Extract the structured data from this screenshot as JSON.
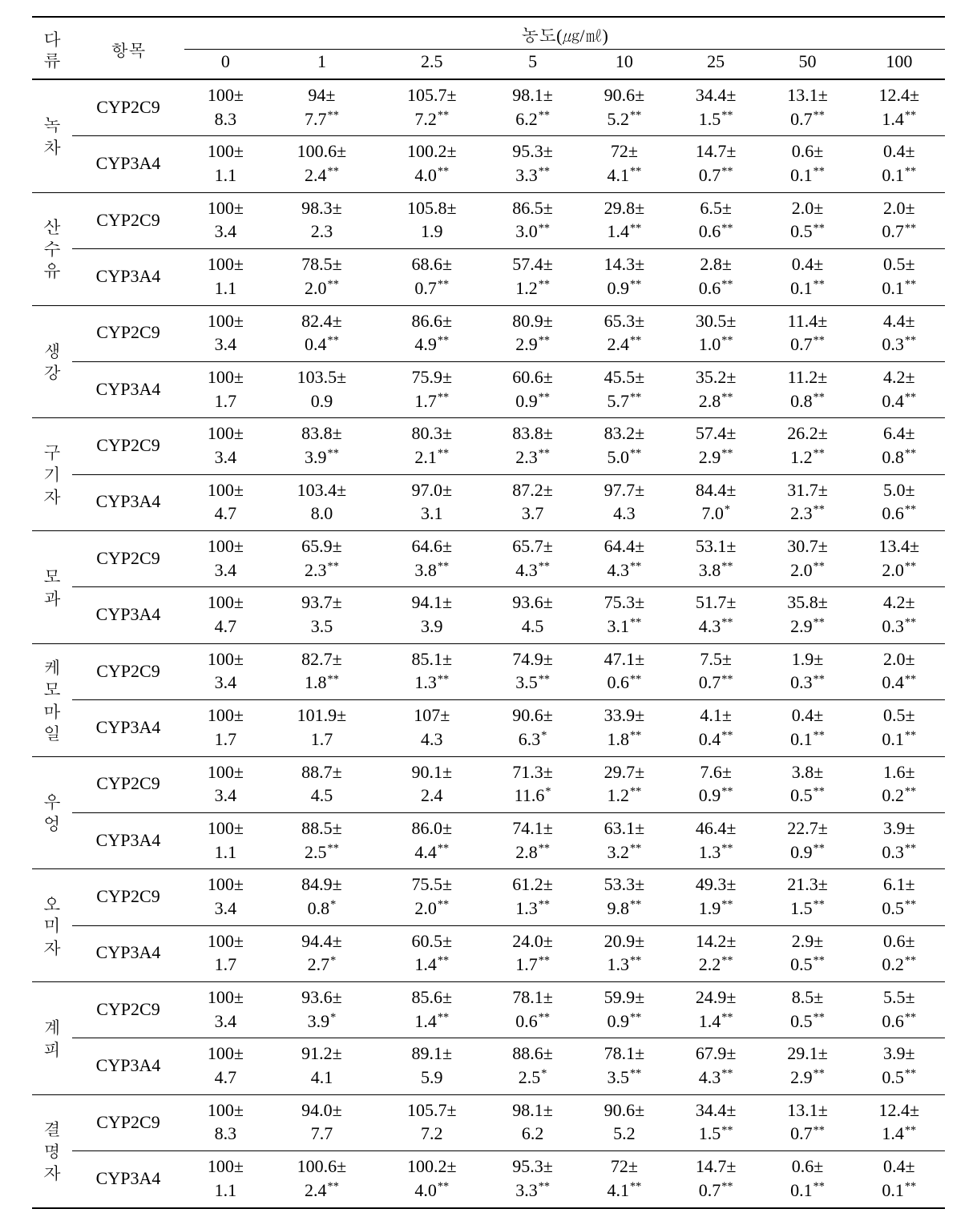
{
  "header": {
    "category_lines": [
      "다",
      "류"
    ],
    "item": "항목",
    "conc_title": "농도(㎍/㎖)",
    "levels": [
      "0",
      "1",
      "2.5",
      "5",
      "10",
      "25",
      "50",
      "100"
    ]
  },
  "groups": [
    {
      "name_lines": [
        "녹",
        "차"
      ],
      "rows": [
        {
          "item": "CYP2C9",
          "vals": [
            [
              "100±",
              "8.3",
              ""
            ],
            [
              "94±",
              "7.7",
              "**"
            ],
            [
              "105.7±",
              "7.2",
              "**"
            ],
            [
              "98.1±",
              "6.2",
              "**"
            ],
            [
              "90.6±",
              "5.2",
              "**"
            ],
            [
              "34.4±",
              "1.5",
              "**"
            ],
            [
              "13.1±",
              "0.7",
              "**"
            ],
            [
              "12.4±",
              "1.4",
              "**"
            ]
          ]
        },
        {
          "item": "CYP3A4",
          "vals": [
            [
              "100±",
              "1.1",
              ""
            ],
            [
              "100.6±",
              "2.4",
              "**"
            ],
            [
              "100.2±",
              "4.0",
              "**"
            ],
            [
              "95.3±",
              "3.3",
              "**"
            ],
            [
              "72±",
              "4.1",
              "**"
            ],
            [
              "14.7±",
              "0.7",
              "**"
            ],
            [
              "0.6±",
              "0.1",
              "**"
            ],
            [
              "0.4±",
              "0.1",
              "**"
            ]
          ]
        }
      ]
    },
    {
      "name_lines": [
        "산",
        "수",
        "유"
      ],
      "rows": [
        {
          "item": "CYP2C9",
          "vals": [
            [
              "100±",
              "3.4",
              ""
            ],
            [
              "98.3±",
              "2.3",
              ""
            ],
            [
              "105.8±",
              "1.9",
              ""
            ],
            [
              "86.5±",
              "3.0",
              "**"
            ],
            [
              "29.8±",
              "1.4",
              "**"
            ],
            [
              "6.5±",
              "0.6",
              "**"
            ],
            [
              "2.0±",
              "0.5",
              "**"
            ],
            [
              "2.0±",
              "0.7",
              "**"
            ]
          ]
        },
        {
          "item": "CYP3A4",
          "vals": [
            [
              "100±",
              "1.1",
              ""
            ],
            [
              "78.5±",
              "2.0",
              "**"
            ],
            [
              "68.6±",
              "0.7",
              "**"
            ],
            [
              "57.4±",
              "1.2",
              "**"
            ],
            [
              "14.3±",
              "0.9",
              "**"
            ],
            [
              "2.8±",
              "0.6",
              "**"
            ],
            [
              "0.4±",
              "0.1",
              "**"
            ],
            [
              "0.5±",
              "0.1",
              "**"
            ]
          ]
        }
      ]
    },
    {
      "name_lines": [
        "생",
        "강"
      ],
      "rows": [
        {
          "item": "CYP2C9",
          "vals": [
            [
              "100±",
              "3.4",
              ""
            ],
            [
              "82.4±",
              "0.4",
              "**"
            ],
            [
              "86.6±",
              "4.9",
              "**"
            ],
            [
              "80.9±",
              "2.9",
              "**"
            ],
            [
              "65.3±",
              "2.4",
              "**"
            ],
            [
              "30.5±",
              "1.0",
              "**"
            ],
            [
              "11.4±",
              "0.7",
              "**"
            ],
            [
              "4.4±",
              "0.3",
              "**"
            ]
          ]
        },
        {
          "item": "CYP3A4",
          "vals": [
            [
              "100±",
              "1.7",
              ""
            ],
            [
              "103.5±",
              "0.9",
              ""
            ],
            [
              "75.9±",
              "1.7",
              "**"
            ],
            [
              "60.6±",
              "0.9",
              "**"
            ],
            [
              "45.5±",
              "5.7",
              "**"
            ],
            [
              "35.2±",
              "2.8",
              "**"
            ],
            [
              "11.2±",
              "0.8",
              "**"
            ],
            [
              "4.2±",
              "0.4",
              "**"
            ]
          ]
        }
      ]
    },
    {
      "name_lines": [
        "구",
        "기",
        "자"
      ],
      "rows": [
        {
          "item": "CYP2C9",
          "vals": [
            [
              "100±",
              "3.4",
              ""
            ],
            [
              "83.8±",
              "3.9",
              "**"
            ],
            [
              "80.3±",
              "2.1",
              "**"
            ],
            [
              "83.8±",
              "2.3",
              "**"
            ],
            [
              "83.2±",
              "5.0",
              "**"
            ],
            [
              "57.4±",
              "2.9",
              "**"
            ],
            [
              "26.2±",
              "1.2",
              "**"
            ],
            [
              "6.4±",
              "0.8",
              "**"
            ]
          ]
        },
        {
          "item": "CYP3A4",
          "vals": [
            [
              "100±",
              "4.7",
              ""
            ],
            [
              "103.4±",
              "8.0",
              ""
            ],
            [
              "97.0±",
              "3.1",
              ""
            ],
            [
              "87.2±",
              "3.7",
              ""
            ],
            [
              "97.7±",
              "4.3",
              ""
            ],
            [
              "84.4±",
              "7.0",
              "*"
            ],
            [
              "31.7±",
              "2.3",
              "**"
            ],
            [
              "5.0±",
              "0.6",
              "**"
            ]
          ]
        }
      ]
    },
    {
      "name_lines": [
        "모",
        "과"
      ],
      "rows": [
        {
          "item": "CYP2C9",
          "vals": [
            [
              "100±",
              "3.4",
              ""
            ],
            [
              "65.9±",
              "2.3",
              "**"
            ],
            [
              "64.6±",
              "3.8",
              "**"
            ],
            [
              "65.7±",
              "4.3",
              "**"
            ],
            [
              "64.4±",
              "4.3",
              "**"
            ],
            [
              "53.1±",
              "3.8",
              "**"
            ],
            [
              "30.7±",
              "2.0",
              "**"
            ],
            [
              "13.4±",
              "2.0",
              "**"
            ]
          ]
        },
        {
          "item": "CYP3A4",
          "vals": [
            [
              "100±",
              "4.7",
              ""
            ],
            [
              "93.7±",
              "3.5",
              ""
            ],
            [
              "94.1±",
              "3.9",
              ""
            ],
            [
              "93.6±",
              "4.5",
              ""
            ],
            [
              "75.3±",
              "3.1",
              "**"
            ],
            [
              "51.7±",
              "4.3",
              "**"
            ],
            [
              "35.8±",
              "2.9",
              "**"
            ],
            [
              "4.2±",
              "0.3",
              "**"
            ]
          ]
        }
      ]
    },
    {
      "name_lines": [
        "케",
        "모",
        "마",
        "일"
      ],
      "rows": [
        {
          "item": "CYP2C9",
          "vals": [
            [
              "100±",
              "3.4",
              ""
            ],
            [
              "82.7±",
              "1.8",
              "**"
            ],
            [
              "85.1±",
              "1.3",
              "**"
            ],
            [
              "74.9±",
              "3.5",
              "**"
            ],
            [
              "47.1±",
              "0.6",
              "**"
            ],
            [
              "7.5±",
              "0.7",
              "**"
            ],
            [
              "1.9±",
              "0.3",
              "**"
            ],
            [
              "2.0±",
              "0.4",
              "**"
            ]
          ]
        },
        {
          "item": "CYP3A4",
          "vals": [
            [
              "100±",
              "1.7",
              ""
            ],
            [
              "101.9±",
              "1.7",
              ""
            ],
            [
              "107±",
              "4.3",
              ""
            ],
            [
              "90.6±",
              "6.3",
              "*"
            ],
            [
              "33.9±",
              "1.8",
              "**"
            ],
            [
              "4.1±",
              "0.4",
              "**"
            ],
            [
              "0.4±",
              "0.1",
              "**"
            ],
            [
              "0.5±",
              "0.1",
              "**"
            ]
          ]
        }
      ]
    },
    {
      "name_lines": [
        "우",
        "엉"
      ],
      "rows": [
        {
          "item": "CYP2C9",
          "vals": [
            [
              "100±",
              "3.4",
              ""
            ],
            [
              "88.7±",
              "4.5",
              ""
            ],
            [
              "90.1±",
              "2.4",
              ""
            ],
            [
              "71.3±",
              "11.6",
              "*"
            ],
            [
              "29.7±",
              "1.2",
              "**"
            ],
            [
              "7.6±",
              "0.9",
              "**"
            ],
            [
              "3.8±",
              "0.5",
              "**"
            ],
            [
              "1.6±",
              "0.2",
              "**"
            ]
          ]
        },
        {
          "item": "CYP3A4",
          "vals": [
            [
              "100±",
              "1.1",
              ""
            ],
            [
              "88.5±",
              "2.5",
              "**"
            ],
            [
              "86.0±",
              "4.4",
              "**"
            ],
            [
              "74.1±",
              "2.8",
              "**"
            ],
            [
              "63.1±",
              "3.2",
              "**"
            ],
            [
              "46.4±",
              "1.3",
              "**"
            ],
            [
              "22.7±",
              "0.9",
              "**"
            ],
            [
              "3.9±",
              "0.3",
              "**"
            ]
          ]
        }
      ]
    },
    {
      "name_lines": [
        "오",
        "미",
        "자"
      ],
      "rows": [
        {
          "item": "CYP2C9",
          "vals": [
            [
              "100±",
              "3.4",
              ""
            ],
            [
              "84.9±",
              "0.8",
              "*"
            ],
            [
              "75.5±",
              "2.0",
              "**"
            ],
            [
              "61.2±",
              "1.3",
              "**"
            ],
            [
              "53.3±",
              "9.8",
              "**"
            ],
            [
              "49.3±",
              "1.9",
              "**"
            ],
            [
              "21.3±",
              "1.5",
              "**"
            ],
            [
              "6.1±",
              "0.5",
              "**"
            ]
          ]
        },
        {
          "item": "CYP3A4",
          "vals": [
            [
              "100±",
              "1.7",
              ""
            ],
            [
              "94.4±",
              "2.7",
              "*"
            ],
            [
              "60.5±",
              "1.4",
              "**"
            ],
            [
              "24.0±",
              "1.7",
              "**"
            ],
            [
              "20.9±",
              "1.3",
              "**"
            ],
            [
              "14.2±",
              "2.2",
              "**"
            ],
            [
              "2.9±",
              "0.5",
              "**"
            ],
            [
              "0.6±",
              "0.2",
              "**"
            ]
          ]
        }
      ]
    },
    {
      "name_lines": [
        "계",
        "피"
      ],
      "rows": [
        {
          "item": "CYP2C9",
          "vals": [
            [
              "100±",
              "3.4",
              ""
            ],
            [
              "93.6±",
              "3.9",
              "*"
            ],
            [
              "85.6±",
              "1.4",
              "**"
            ],
            [
              "78.1±",
              "0.6",
              "**"
            ],
            [
              "59.9±",
              "0.9",
              "**"
            ],
            [
              "24.9±",
              "1.4",
              "**"
            ],
            [
              "8.5±",
              "0.5",
              "**"
            ],
            [
              "5.5±",
              "0.6",
              "**"
            ]
          ]
        },
        {
          "item": "CYP3A4",
          "vals": [
            [
              "100±",
              "4.7",
              ""
            ],
            [
              "91.2±",
              "4.1",
              ""
            ],
            [
              "89.1±",
              "5.9",
              ""
            ],
            [
              "88.6±",
              "2.5",
              "*"
            ],
            [
              "78.1±",
              "3.5",
              "**"
            ],
            [
              "67.9±",
              "4.3",
              "**"
            ],
            [
              "29.1±",
              "2.9",
              "**"
            ],
            [
              "3.9±",
              "0.5",
              "**"
            ]
          ]
        }
      ]
    },
    {
      "name_lines": [
        "결",
        "명",
        "자"
      ],
      "rows": [
        {
          "item": "CYP2C9",
          "vals": [
            [
              "100±",
              "8.3",
              ""
            ],
            [
              "94.0±",
              "7.7",
              ""
            ],
            [
              "105.7±",
              "7.2",
              ""
            ],
            [
              "98.1±",
              "6.2",
              ""
            ],
            [
              "90.6±",
              "5.2",
              ""
            ],
            [
              "34.4±",
              "1.5",
              "**"
            ],
            [
              "13.1±",
              "0.7",
              "**"
            ],
            [
              "12.4±",
              "1.4",
              "**"
            ]
          ]
        },
        {
          "item": "CYP3A4",
          "vals": [
            [
              "100±",
              "1.1",
              ""
            ],
            [
              "100.6±",
              "2.4",
              "**"
            ],
            [
              "100.2±",
              "4.0",
              "**"
            ],
            [
              "95.3±",
              "3.3",
              "**"
            ],
            [
              "72±",
              "4.1",
              "**"
            ],
            [
              "14.7±",
              "0.7",
              "**"
            ],
            [
              "0.6±",
              "0.1",
              "**"
            ],
            [
              "0.4±",
              "0.1",
              "**"
            ]
          ]
        }
      ]
    }
  ]
}
